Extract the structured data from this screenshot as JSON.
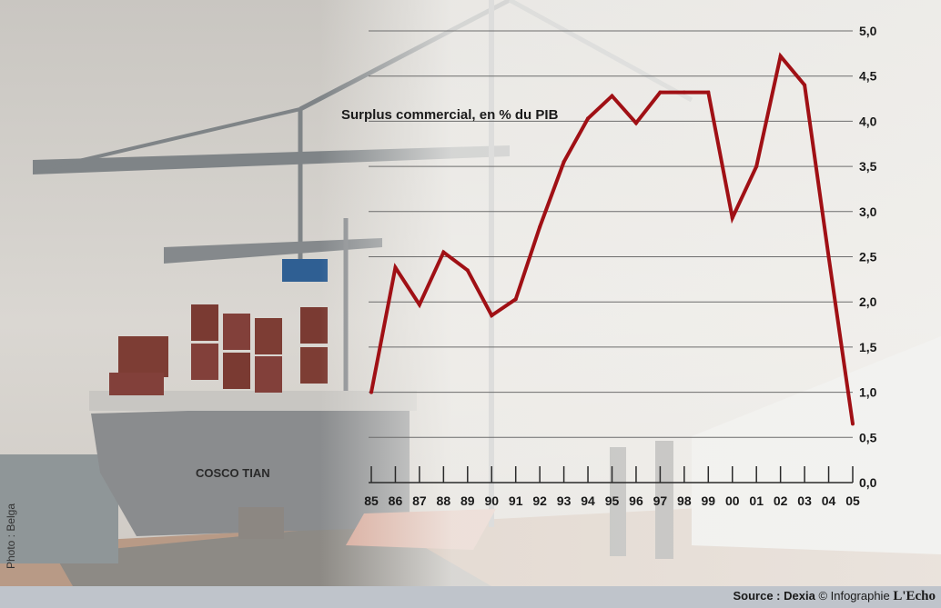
{
  "chart_data": {
    "type": "line",
    "title": "Surplus commercial, en % du PIB",
    "categories": [
      "85",
      "86",
      "87",
      "88",
      "89",
      "90",
      "91",
      "92",
      "93",
      "94",
      "95",
      "96",
      "97",
      "98",
      "99",
      "00",
      "01",
      "02",
      "03",
      "04",
      "05"
    ],
    "series": [
      {
        "values": [
          1.0,
          2.38,
          1.97,
          2.55,
          2.35,
          1.85,
          2.03,
          2.83,
          3.55,
          4.03,
          4.28,
          3.98,
          4.32,
          4.32,
          4.32,
          2.93,
          3.5,
          4.72,
          4.4,
          2.5,
          0.65
        ]
      }
    ],
    "yticks": [
      "0,0",
      "0,5",
      "1,0",
      "1,5",
      "2,0",
      "2,5",
      "3,0",
      "3,5",
      "4,0",
      "4,5",
      "5,0"
    ],
    "ylim": [
      0,
      5
    ],
    "grid": true,
    "line_color": "#a01015"
  },
  "photo_credit": "Photo : Belga",
  "source_label": "Source : Dexia",
  "infographie_label": "© Infographie",
  "brand": "L'Echo"
}
